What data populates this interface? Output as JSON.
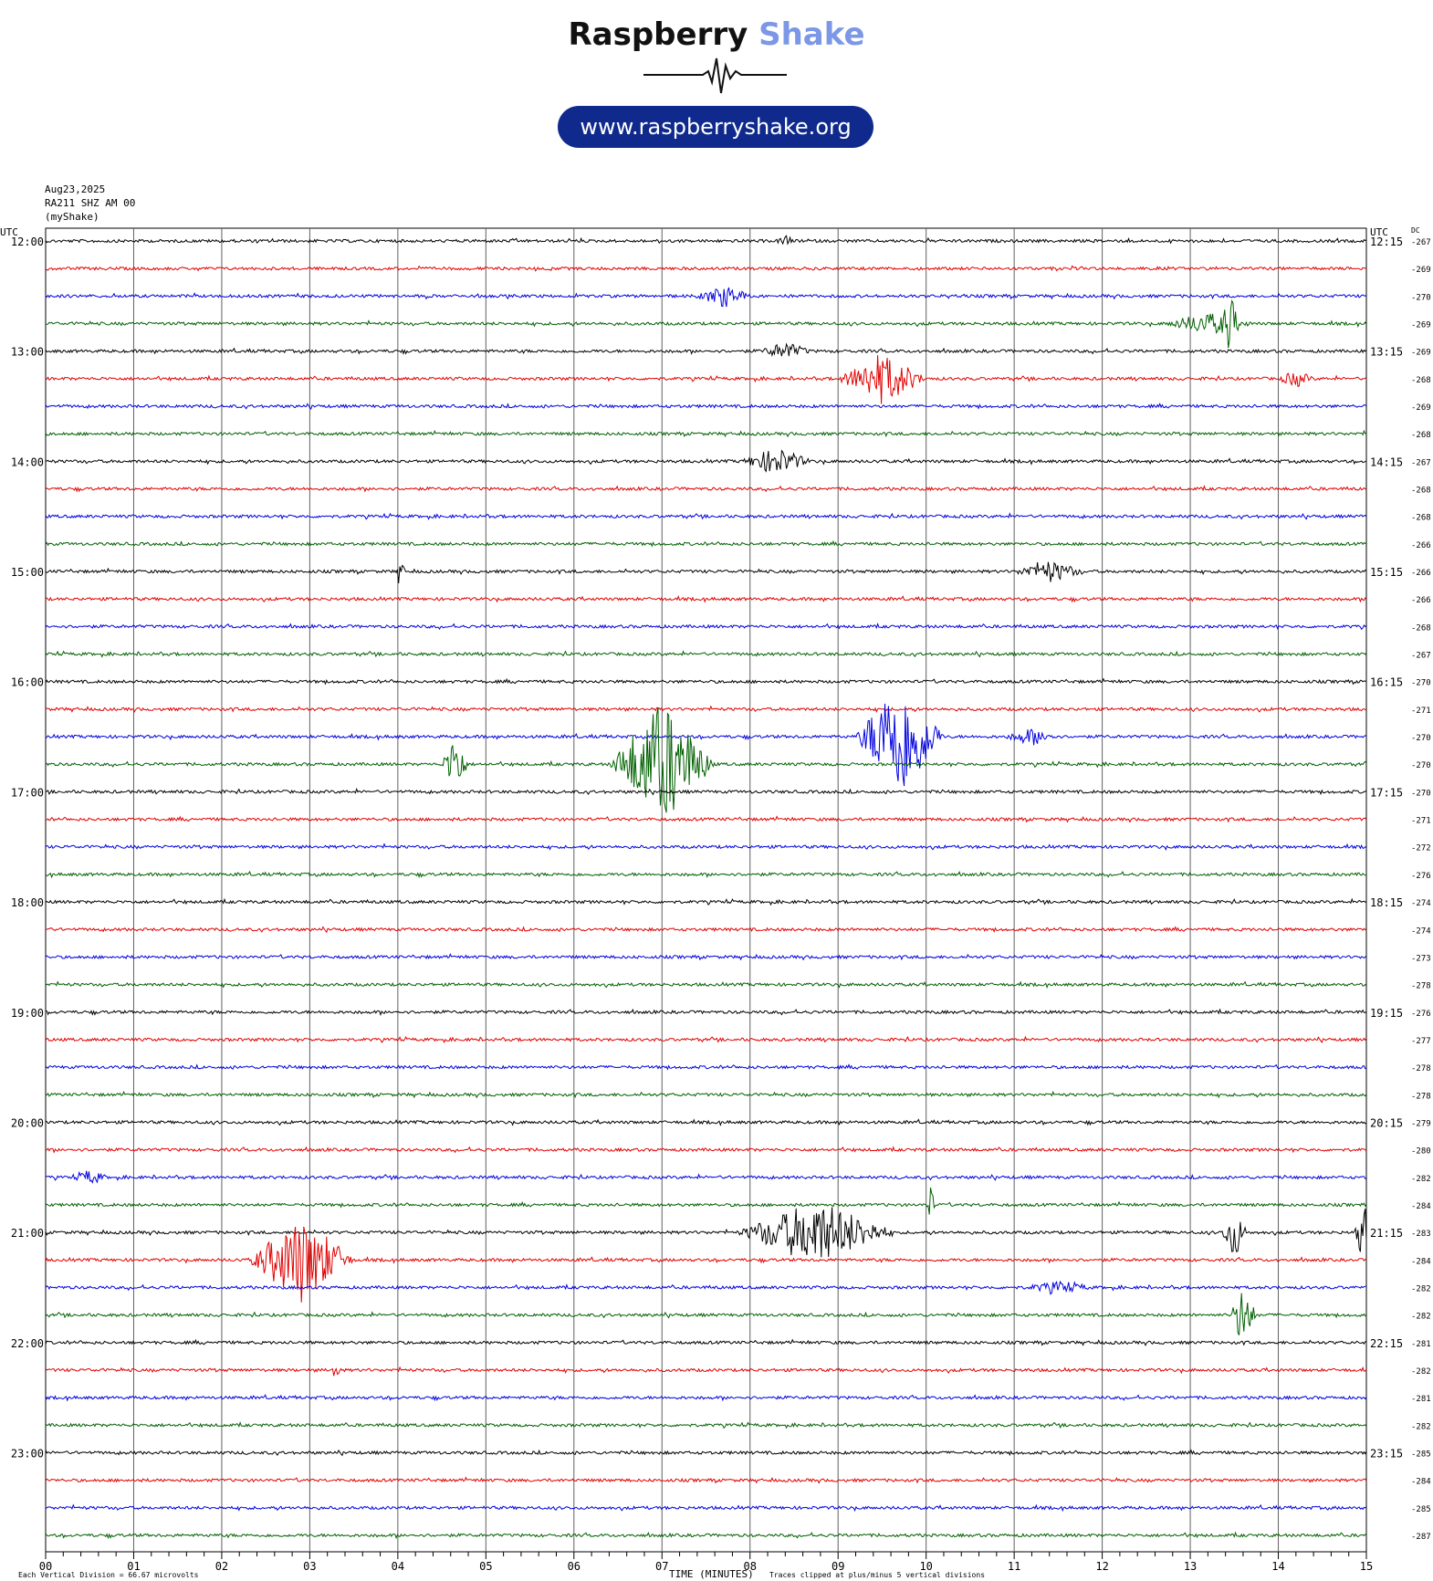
{
  "logo": {
    "brand_part1": "Raspberry",
    "brand_part2": "Shake",
    "url": "www.raspberryshake.org"
  },
  "header": {
    "date": "Aug23,2025",
    "station": "RA211 SHZ AM 00",
    "network": "(myShake)"
  },
  "colors": {
    "trace_cycle": [
      "#000000",
      "#e00000",
      "#0000e0",
      "#006000"
    ],
    "grid": "#606060",
    "pill": "#0f2a8c",
    "brand_accent": "#7b97e6"
  },
  "chart_data": {
    "type": "line",
    "title": "",
    "xlabel": "TIME (MINUTES)",
    "ylabel": "",
    "left_axis_label": "UTC",
    "right_axis_label": "UTC",
    "dc_label": "DC",
    "xlim": [
      0,
      15
    ],
    "x_ticks": [
      "00",
      "01",
      "02",
      "03",
      "04",
      "05",
      "06",
      "07",
      "08",
      "09",
      "10",
      "11",
      "12",
      "13",
      "14",
      "15"
    ],
    "footer_left": "Each Vertical Division =   66.67 microvolts",
    "footer_right": "Traces clipped at plus/minus 5 vertical divisions",
    "left_time_labels": [
      "12:00",
      "13:00",
      "14:00",
      "15:00",
      "16:00",
      "17:00",
      "18:00",
      "19:00",
      "20:00",
      "21:00",
      "22:00",
      "23:00"
    ],
    "right_time_labels": [
      "12:15",
      "13:15",
      "14:15",
      "15:15",
      "16:15",
      "17:15",
      "18:15",
      "19:15",
      "20:15",
      "21:15",
      "22:15",
      "23:15"
    ],
    "dc_values": [
      -267,
      -269,
      -270,
      -269,
      -269,
      -268,
      -269,
      -268,
      -267,
      -268,
      -268,
      -266,
      -266,
      -266,
      -268,
      -267,
      -270,
      -271,
      -270,
      -270,
      -270,
      -271,
      -272,
      -276,
      -274,
      -274,
      -273,
      -278,
      -276,
      -277,
      -278,
      -278,
      -279,
      -280,
      -282,
      -284,
      -283,
      -284,
      -282,
      -282,
      -281,
      -282,
      -281,
      -282,
      -285,
      -284,
      -285,
      -287
    ],
    "events": [
      {
        "row": 0,
        "minute": 8.4,
        "amplitude": 0.4,
        "duration": 0.1
      },
      {
        "row": 2,
        "minute": 7.7,
        "amplitude": 0.8,
        "duration": 0.3
      },
      {
        "row": 3,
        "minute": 13.2,
        "amplitude": 0.8,
        "duration": 0.5
      },
      {
        "row": 3,
        "minute": 13.45,
        "amplitude": 2.0,
        "duration": 0.1
      },
      {
        "row": 4,
        "minute": 8.4,
        "amplitude": 0.6,
        "duration": 0.3
      },
      {
        "row": 5,
        "minute": 9.5,
        "amplitude": 2.0,
        "duration": 0.5
      },
      {
        "row": 5,
        "minute": 14.2,
        "amplitude": 0.6,
        "duration": 0.2
      },
      {
        "row": 8,
        "minute": 8.3,
        "amplitude": 1.0,
        "duration": 0.4
      },
      {
        "row": 12,
        "minute": 4.03,
        "amplitude": 1.5,
        "duration": 0.05
      },
      {
        "row": 12,
        "minute": 11.4,
        "amplitude": 0.8,
        "duration": 0.4
      },
      {
        "row": 18,
        "minute": 9.7,
        "amplitude": 5.0,
        "duration": 0.5
      },
      {
        "row": 18,
        "minute": 11.2,
        "amplitude": 0.6,
        "duration": 0.3
      },
      {
        "row": 19,
        "minute": 4.65,
        "amplitude": 2.5,
        "duration": 0.15
      },
      {
        "row": 19,
        "minute": 7.0,
        "amplitude": 5.0,
        "duration": 0.6
      },
      {
        "row": 34,
        "minute": 0.5,
        "amplitude": 0.5,
        "duration": 0.2
      },
      {
        "row": 35,
        "minute": 10.05,
        "amplitude": 1.5,
        "duration": 0.05
      },
      {
        "row": 36,
        "minute": 8.75,
        "amplitude": 2.5,
        "duration": 0.9
      },
      {
        "row": 36,
        "minute": 13.5,
        "amplitude": 2.0,
        "duration": 0.15
      },
      {
        "row": 36,
        "minute": 14.95,
        "amplitude": 3.5,
        "duration": 0.08
      },
      {
        "row": 37,
        "minute": 2.9,
        "amplitude": 3.5,
        "duration": 0.6
      },
      {
        "row": 38,
        "minute": 11.5,
        "amplitude": 0.4,
        "duration": 0.4
      },
      {
        "row": 39,
        "minute": 13.6,
        "amplitude": 2.5,
        "duration": 0.15
      },
      {
        "row": 41,
        "minute": 3.3,
        "amplitude": 1.2,
        "duration": 0.05
      }
    ]
  }
}
